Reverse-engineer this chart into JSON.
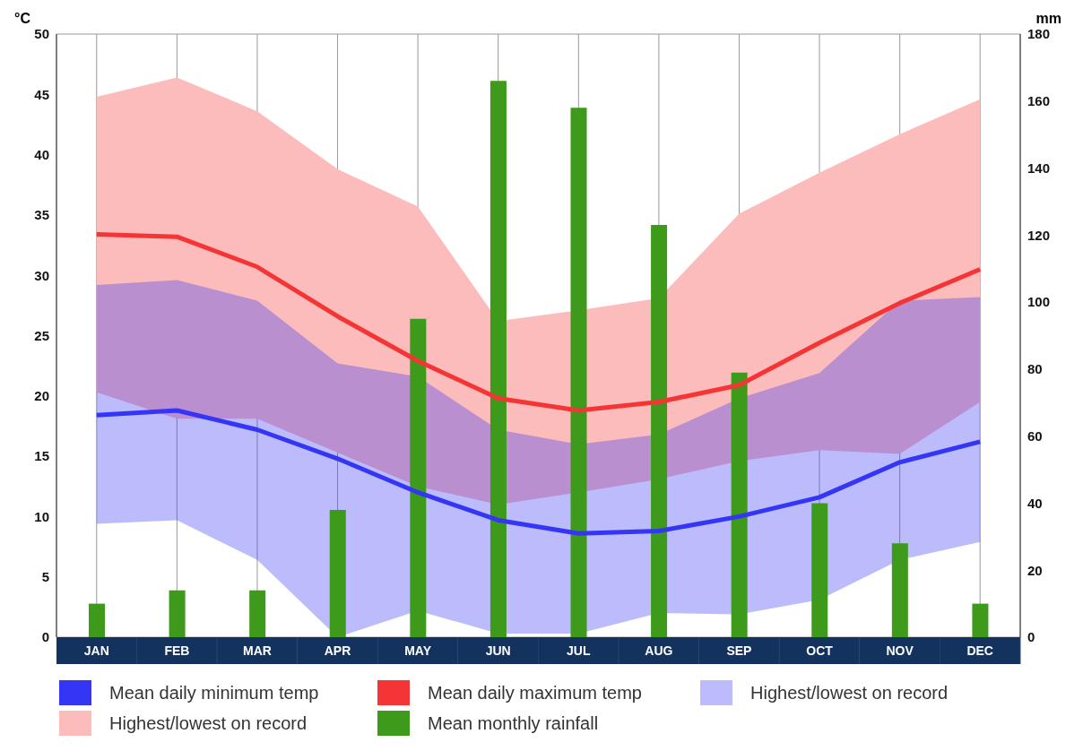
{
  "chart_data": {
    "type": "line",
    "ylabel": "°C",
    "y2label": "mm",
    "categories": [
      "JAN",
      "FEB",
      "MAR",
      "APR",
      "MAY",
      "JUN",
      "JUL",
      "AUG",
      "SEP",
      "OCT",
      "NOV",
      "DEC"
    ],
    "ylim": [
      0,
      50
    ],
    "yticks": [
      0,
      5,
      10,
      15,
      20,
      25,
      30,
      35,
      40,
      45,
      50
    ],
    "y2lim": [
      0,
      180
    ],
    "y2ticks": [
      0,
      20,
      40,
      60,
      80,
      100,
      120,
      140,
      160,
      180
    ],
    "grid": true,
    "legend": "bottom",
    "marker": "none",
    "line_style": "solid",
    "annotations": [
      "Highest/lowest on record",
      "Highest/lowest on record"
    ],
    "series": [
      {
        "name": "Mean daily minimum temp",
        "color": "#3535f5",
        "values": [
          18.4,
          18.8,
          17.2,
          14.8,
          12.0,
          9.7,
          8.6,
          8.8,
          10.0,
          11.6,
          14.5,
          16.2
        ],
        "lower": [
          9.4,
          9.7,
          6.4,
          0,
          2.2,
          0.3,
          0.3,
          2.0,
          1.9,
          3.1,
          6.4,
          7.9
        ],
        "upper": [
          29.2,
          29.6,
          27.9,
          22.7,
          21.6,
          17.2,
          16.0,
          16.8,
          19.8,
          21.9,
          27.9,
          28.2
        ]
      },
      {
        "name": "Mean daily maximum temp",
        "color": "#f53535",
        "values": [
          33.4,
          33.2,
          30.7,
          26.6,
          22.9,
          19.8,
          18.8,
          19.5,
          20.9,
          24.4,
          27.7,
          30.5
        ],
        "lower": [
          20.3,
          18.1,
          18.1,
          15.3,
          12.5,
          11.0,
          12.0,
          13.1,
          14.6,
          15.5,
          15.2,
          19.5
        ],
        "upper": [
          44.8,
          46.4,
          43.6,
          38.8,
          35.7,
          26.2,
          27.1,
          28.1,
          35.1,
          38.5,
          41.7,
          44.6
        ]
      },
      {
        "name": "Mean monthly rainfall",
        "type": "bar",
        "axis": "y2",
        "color": "#3d9a1a",
        "values": [
          10,
          14,
          14,
          38,
          95,
          166,
          158,
          123,
          79,
          40,
          28,
          10
        ]
      }
    ]
  }
}
